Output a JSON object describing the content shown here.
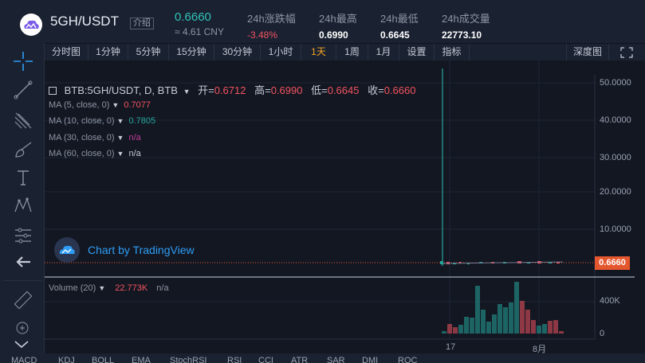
{
  "header": {
    "pair": "5GH/USDT",
    "intro_label": "介绍",
    "price": "0.6660",
    "price_cny": "≈ 4.61 CNY",
    "stats": [
      {
        "label": "24h涨跌幅",
        "value": "-3.48%",
        "negative": true
      },
      {
        "label": "24h最高",
        "value": "0.6990",
        "negative": false
      },
      {
        "label": "24h最低",
        "value": "0.6645",
        "negative": false
      },
      {
        "label": "24h成交量",
        "value": "22773.10",
        "negative": false
      }
    ]
  },
  "toolbar": {
    "items": [
      "分时图",
      "1分钟",
      "5分钟",
      "15分钟",
      "30分钟",
      "1小时",
      "1天",
      "1周",
      "1月",
      "设置",
      "指标"
    ],
    "active": "1天",
    "depth_label": "深度图"
  },
  "sidebar": {
    "tools": [
      "crosshair-icon",
      "trend-line-icon",
      "fib-icon",
      "brush-icon",
      "text-icon",
      "pattern-icon",
      "measure-lines-icon",
      "back-arrow-icon",
      "ruler-icon",
      "zoom-icon",
      "chevron-down-icon"
    ]
  },
  "chart": {
    "symbol": "BTB:5GH/USDT, D, BTB",
    "ohlc": {
      "open_label": "开",
      "open": "0.6712",
      "high_label": "高",
      "high": "0.6990",
      "low_label": "低",
      "low": "0.6645",
      "close_label": "收",
      "close": "0.6660"
    },
    "ma": [
      {
        "label": "MA (5, close, 0)",
        "value": "0.7077",
        "color": "#f25460"
      },
      {
        "label": "MA (10, close, 0)",
        "value": "0.7805",
        "color": "#26a69a"
      },
      {
        "label": "MA (30, close, 0)",
        "value": "n/a",
        "color": "#c23c9a"
      },
      {
        "label": "MA (60, close, 0)",
        "value": "n/a",
        "color": "#c4cad6"
      }
    ],
    "watermark": "Chart by TradingView",
    "price_tag": "0.6660",
    "price_axis": [
      "50.0000",
      "40.0000",
      "30.0000",
      "20.0000",
      "10.0000"
    ],
    "volume": {
      "label": "Volume (20)",
      "value": "22.773K",
      "extra": "n/a",
      "axis": [
        "400K",
        "0"
      ]
    },
    "x_axis": [
      "17",
      "8月"
    ]
  },
  "bottom_bar": {
    "indicators": [
      "MACD",
      "KDJ",
      "BOLL",
      "EMA",
      "StochRSI",
      "RSI",
      "CCI",
      "ATR",
      "SAR",
      "DMI",
      "ROC"
    ]
  },
  "colors": {
    "up": "#26a69a",
    "down": "#f25460",
    "accent": "#f5a623",
    "brand_blue": "#2e9df5"
  }
}
